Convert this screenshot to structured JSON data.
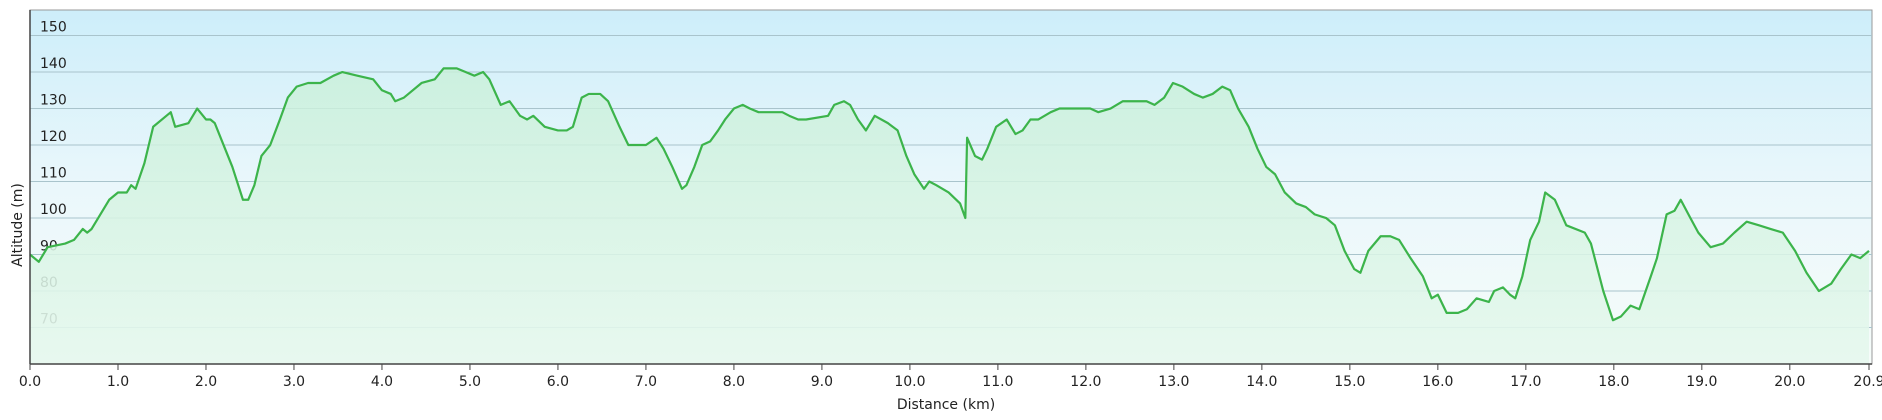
{
  "chart_data": {
    "type": "area",
    "y_label": "Altitude (m)",
    "x_label": "Distance  (km)",
    "line_color": "#3cb44b",
    "fill_color": "#d8f5e4",
    "grid": true,
    "xlim": [
      0,
      20.9
    ],
    "ylim": [
      60,
      157
    ],
    "yticks": [
      70,
      80,
      90,
      100,
      110,
      120,
      130,
      140,
      150
    ],
    "xticks": [
      {
        "value": 0,
        "label": "0.0"
      },
      {
        "value": 1,
        "label": "1.0"
      },
      {
        "value": 2,
        "label": "2.0"
      },
      {
        "value": 3,
        "label": "3.0"
      },
      {
        "value": 4,
        "label": "4.0"
      },
      {
        "value": 5,
        "label": "5.0"
      },
      {
        "value": 6,
        "label": "6.0"
      },
      {
        "value": 7,
        "label": "7.0"
      },
      {
        "value": 8,
        "label": "8.0"
      },
      {
        "value": 9,
        "label": "9.0"
      },
      {
        "value": 10,
        "label": "10.0"
      },
      {
        "value": 11,
        "label": "11.0"
      },
      {
        "value": 12,
        "label": "12.0"
      },
      {
        "value": 13,
        "label": "13.0"
      },
      {
        "value": 14,
        "label": "14.0"
      },
      {
        "value": 15,
        "label": "15.0"
      },
      {
        "value": 16,
        "label": "16.0"
      },
      {
        "value": 17,
        "label": "17.0"
      },
      {
        "value": 18,
        "label": "18.0"
      },
      {
        "value": 19,
        "label": "19.0"
      },
      {
        "value": 20,
        "label": "20.0"
      },
      20.9
    ],
    "x": [
      0,
      0.1,
      0.2,
      0.4,
      0.5,
      0.6,
      0.65,
      0.7,
      0.9,
      1.0,
      1.1,
      1.15,
      1.2,
      1.3,
      1.4,
      1.55,
      1.6,
      1.65,
      1.8,
      1.9,
      2.0,
      2.05,
      2.1,
      2.2,
      2.3,
      2.42,
      2.48,
      2.55,
      2.63,
      2.73,
      2.84,
      2.93,
      3.03,
      3.16,
      3.2,
      3.3,
      3.45,
      3.55,
      3.72,
      3.9,
      4.0,
      4.1,
      4.15,
      4.25,
      4.3,
      4.45,
      4.6,
      4.7,
      4.85,
      4.95,
      5.05,
      5.15,
      5.22,
      5.35,
      5.45,
      5.57,
      5.65,
      5.72,
      5.85,
      6.0,
      6.1,
      6.17,
      6.27,
      6.35,
      6.48,
      6.57,
      6.7,
      6.8,
      6.9,
      7.0,
      7.12,
      7.2,
      7.3,
      7.41,
      7.46,
      7.55,
      7.64,
      7.73,
      7.82,
      7.9,
      8.0,
      8.1,
      8.18,
      8.28,
      8.45,
      8.55,
      8.63,
      8.73,
      8.82,
      9.07,
      9.14,
      9.25,
      9.32,
      9.41,
      9.5,
      9.6,
      9.75,
      9.86,
      9.96,
      10.05,
      10.16,
      10.22,
      10.3,
      10.44,
      10.57,
      10.63,
      10.65,
      10.74,
      10.82,
      10.88,
      10.98,
      11.1,
      11.2,
      11.28,
      11.37,
      11.46,
      11.6,
      11.7,
      11.84,
      11.94,
      12.05,
      12.14,
      12.28,
      12.42,
      12.55,
      12.69,
      12.78,
      12.89,
      12.99,
      13.1,
      13.23,
      13.33,
      13.44,
      13.55,
      13.64,
      13.73,
      13.85,
      13.95,
      14.05,
      14.15,
      14.26,
      14.39,
      14.5,
      14.6,
      14.73,
      14.83,
      14.94,
      15.05,
      15.12,
      15.21,
      15.35,
      15.46,
      15.56,
      15.69,
      15.83,
      15.93,
      16.0,
      16.1,
      16.23,
      16.33,
      16.44,
      16.58,
      16.64,
      16.74,
      16.82,
      16.88,
      16.96,
      17.05,
      17.15,
      17.22,
      17.33,
      17.46,
      17.67,
      17.74,
      17.88,
      17.99,
      18.08,
      18.19,
      18.29,
      18.42,
      18.49,
      18.6,
      18.69,
      18.76,
      18.87,
      18.96,
      19.1,
      19.24,
      19.37,
      19.51,
      19.65,
      19.78,
      19.92,
      20.06,
      20.19,
      20.33,
      20.47,
      20.58,
      20.7,
      20.8,
      20.9
    ],
    "values": [
      90,
      88,
      92,
      93,
      94,
      97,
      96,
      97,
      105,
      107,
      107,
      109,
      108,
      115,
      125,
      128,
      129,
      125,
      126,
      130,
      127,
      127,
      126,
      120,
      114,
      105,
      105,
      109,
      117,
      120,
      127,
      133,
      136,
      137,
      137,
      137,
      139,
      140,
      139,
      138,
      135,
      134,
      132,
      133,
      134,
      137,
      138,
      141,
      141,
      140,
      139,
      140,
      138,
      131,
      132,
      128,
      127,
      128,
      125,
      124,
      124,
      125,
      133,
      134,
      134,
      132,
      125,
      120,
      120,
      120,
      122,
      119,
      114,
      108,
      109,
      114,
      120,
      121,
      124,
      127,
      130,
      131,
      130,
      129,
      129,
      129,
      128,
      127,
      127,
      128,
      131,
      132,
      131,
      127,
      124,
      128,
      126,
      124,
      117,
      112,
      108,
      110,
      109,
      107,
      104,
      100,
      122,
      117,
      116,
      119,
      125,
      127,
      123,
      124,
      127,
      127,
      129,
      130,
      130,
      130,
      130,
      129,
      130,
      132,
      132,
      132,
      131,
      133,
      137,
      136,
      134,
      133,
      134,
      136,
      135,
      130,
      125,
      119,
      114,
      112,
      107,
      104,
      103,
      101,
      100,
      98,
      91,
      86,
      85,
      91,
      95,
      95,
      94,
      89,
      84,
      78,
      79,
      74,
      74,
      75,
      78,
      77,
      80,
      81,
      79,
      78,
      84,
      94,
      99,
      107,
      105,
      98,
      96,
      93,
      80,
      72,
      73,
      76,
      75,
      84,
      89,
      101,
      102,
      105,
      100,
      96,
      92,
      93,
      96,
      99,
      98,
      97,
      96,
      91,
      85,
      80,
      82,
      86,
      90,
      89,
      91
    ]
  }
}
